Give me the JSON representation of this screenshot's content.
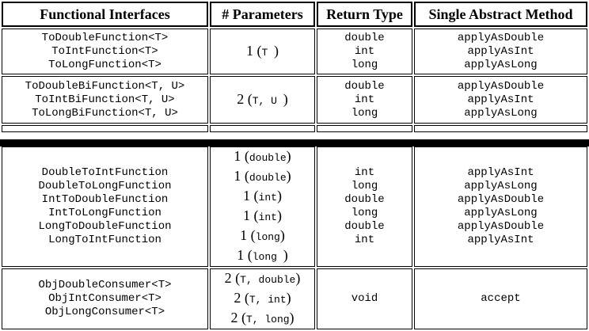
{
  "headers": [
    "Functional Interfaces",
    "# Parameters",
    "Return Type",
    "Single Abstract Method"
  ],
  "top_groups": [
    {
      "interfaces": [
        "ToDoubleFunction<T>",
        "ToIntFunction<T>",
        "ToLongFunction<T>"
      ],
      "params": [
        {
          "num": "1",
          "arg": "T "
        }
      ],
      "returns": [
        "double",
        "int",
        "long"
      ],
      "methods": [
        "applyAsDouble",
        "applyAsInt",
        "applyAsLong"
      ]
    },
    {
      "interfaces": [
        "ToDoubleBiFunction<T, U>",
        "ToIntBiFunction<T, U>",
        "ToLongBiFunction<T, U>"
      ],
      "params": [
        {
          "num": "2",
          "arg": "T, U "
        }
      ],
      "returns": [
        "double",
        "int",
        "long"
      ],
      "methods": [
        "applyAsDouble",
        "applyAsInt",
        "applyAsLong"
      ]
    }
  ],
  "bottom_groups": [
    {
      "interfaces": [
        "DoubleToIntFunction",
        "DoubleToLongFunction",
        "IntToDoubleFunction",
        "IntToLongFunction",
        "LongToDoubleFunction",
        "LongToIntFunction"
      ],
      "params": [
        {
          "num": "1",
          "arg": "double"
        },
        {
          "num": "1",
          "arg": "double"
        },
        {
          "num": "1",
          "arg": "int"
        },
        {
          "num": "1",
          "arg": "int"
        },
        {
          "num": "1",
          "arg": "long"
        },
        {
          "num": "1",
          "arg": "long "
        }
      ],
      "returns": [
        "int",
        "long",
        "double",
        "long",
        "double",
        "int"
      ],
      "methods": [
        "applyAsInt",
        "applyAsLong",
        "applyAsDouble",
        "applyAsLong",
        "applyAsDouble",
        "applyAsInt"
      ]
    },
    {
      "interfaces": [
        "ObjDoubleConsumer<T>",
        "ObjIntConsumer<T>",
        "ObjLongConsumer<T>"
      ],
      "params": [
        {
          "num": "2",
          "arg": "T, double"
        },
        {
          "num": "2",
          "arg": "T, int"
        },
        {
          "num": "2",
          "arg": "T, long"
        }
      ],
      "returns": [
        "void"
      ],
      "methods": [
        "accept"
      ]
    }
  ]
}
